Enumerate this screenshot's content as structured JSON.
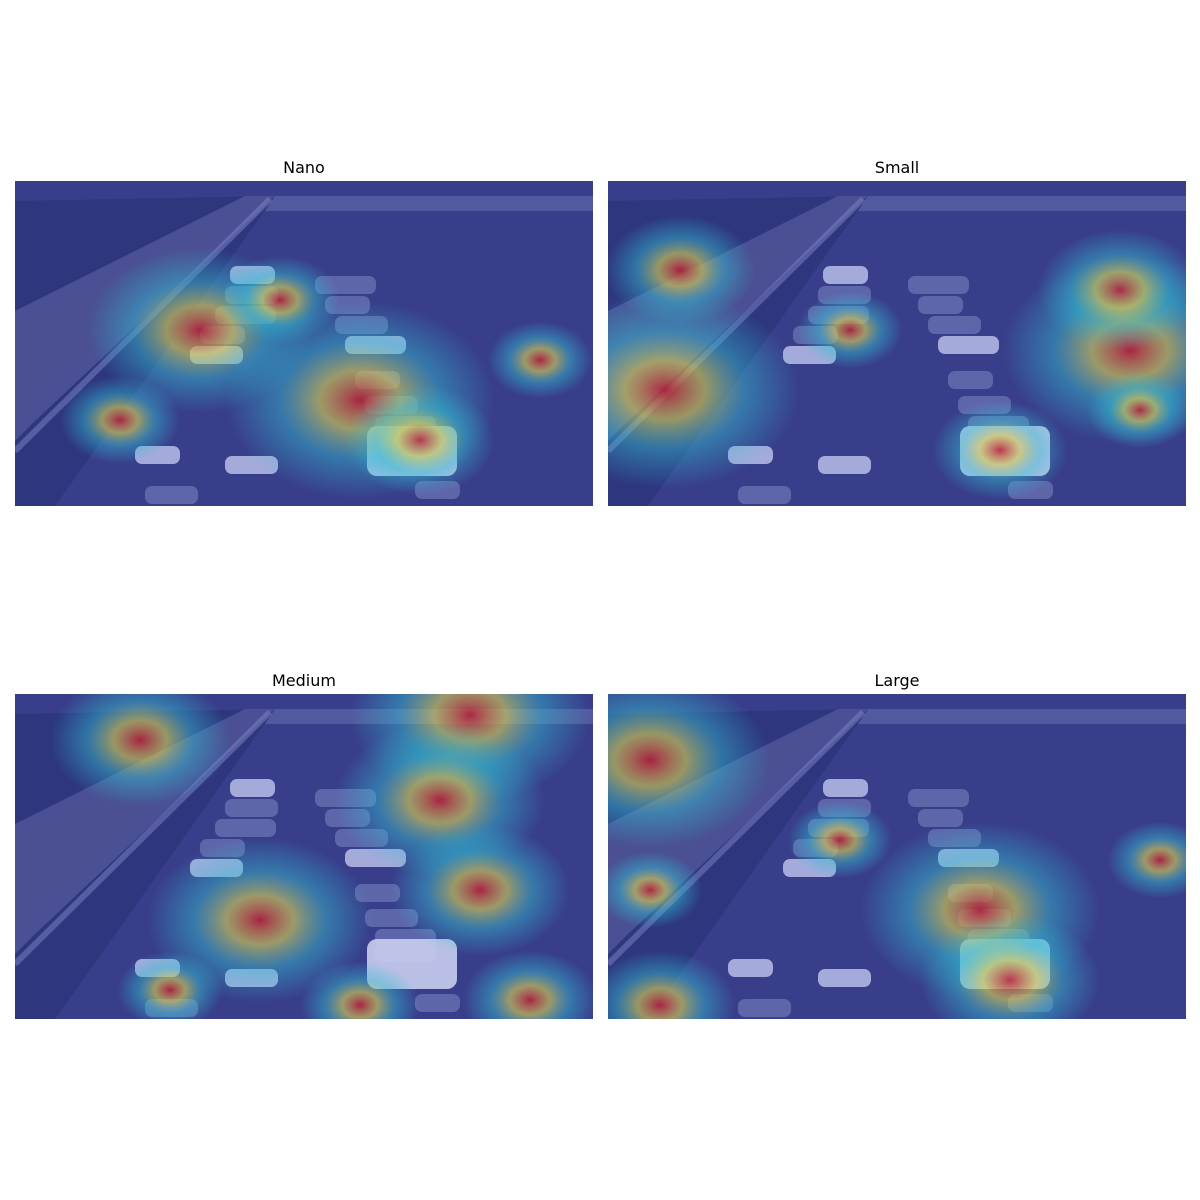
{
  "panels": [
    {
      "title": "Nano",
      "hot": [
        [
          200,
          330,
          0.75
        ],
        [
          360,
          400,
          0.9
        ],
        [
          420,
          440,
          0.5
        ],
        [
          120,
          420,
          0.4
        ],
        [
          540,
          360,
          0.35
        ],
        [
          280,
          300,
          0.4
        ]
      ]
    },
    {
      "title": "Small",
      "hot": [
        [
          665,
          390,
          0.9
        ],
        [
          680,
          270,
          0.5
        ],
        [
          1130,
          350,
          0.85
        ],
        [
          1120,
          290,
          0.55
        ],
        [
          1000,
          450,
          0.45
        ],
        [
          850,
          330,
          0.35
        ],
        [
          1140,
          410,
          0.35
        ]
      ]
    },
    {
      "title": "Medium",
      "hot": [
        [
          140,
          740,
          0.6
        ],
        [
          470,
          715,
          0.8
        ],
        [
          440,
          800,
          0.7
        ],
        [
          260,
          920,
          0.75
        ],
        [
          480,
          890,
          0.6
        ],
        [
          530,
          1000,
          0.45
        ],
        [
          170,
          990,
          0.35
        ],
        [
          360,
          1005,
          0.4
        ]
      ]
    },
    {
      "title": "Large",
      "hot": [
        [
          650,
          760,
          0.8
        ],
        [
          980,
          910,
          0.8
        ],
        [
          1010,
          980,
          0.6
        ],
        [
          660,
          1005,
          0.5
        ],
        [
          840,
          840,
          0.35
        ],
        [
          650,
          890,
          0.35
        ],
        [
          1160,
          860,
          0.35
        ]
      ]
    }
  ]
}
